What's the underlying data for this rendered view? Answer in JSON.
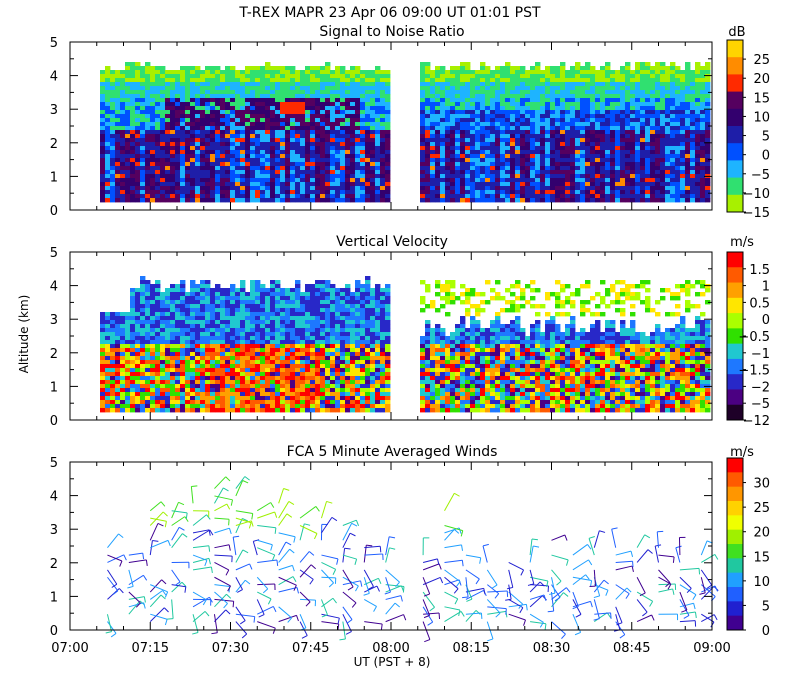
{
  "figure": {
    "title": "T-REX  MAPR 23 Apr 06  09:00 UT  01:01  PST",
    "xlabel": "UT  (PST + 8)",
    "ylabel": "Altitude (km)"
  },
  "chart_data": [
    {
      "type": "heatmap",
      "title": "Signal to Noise Ratio",
      "units": "dB",
      "xlim": [
        "07:00",
        "09:00"
      ],
      "ylim": [
        0,
        5
      ],
      "yticks": [
        "0",
        "1",
        "2",
        "3",
        "4",
        "5"
      ],
      "colorbar_ticks": [
        "25",
        "20",
        "15",
        "10",
        "5",
        "0",
        "−5",
        "−10",
        "−15"
      ],
      "colorbar_values": [
        25,
        20,
        15,
        10,
        5,
        0,
        -5,
        -10,
        -15
      ],
      "colors": [
        "#ffd400",
        "#ff8c00",
        "#ff2a00",
        "#55005f",
        "#33006e",
        "#1e1ea8",
        "#0050ff",
        "#1eb4ff",
        "#30e070",
        "#a8f000"
      ],
      "data_gap": [
        "08:00",
        "08:06"
      ]
    },
    {
      "type": "heatmap",
      "title": "Vertical Velocity",
      "units": "m/s",
      "xlim": [
        "07:00",
        "09:00"
      ],
      "ylim": [
        0,
        5
      ],
      "yticks": [
        "0",
        "1",
        "2",
        "3",
        "4",
        "5"
      ],
      "colorbar_ticks": [
        "1.5",
        "1",
        "0.5",
        "0",
        "−0.5",
        "−1",
        "−1.5",
        "−2",
        "−5",
        "−12"
      ],
      "colorbar_values": [
        1.5,
        1,
        0.5,
        0,
        -0.5,
        -1,
        -1.5,
        -2,
        -5,
        -12
      ],
      "colors": [
        "#ff0000",
        "#ff5a00",
        "#ffa000",
        "#ffe600",
        "#aaff00",
        "#30e000",
        "#20c8d0",
        "#1e78ff",
        "#2828c8",
        "#4b0082",
        "#1e0028"
      ],
      "data_gap": [
        "08:00",
        "08:06"
      ]
    },
    {
      "type": "scatter",
      "title": "FCA 5 Minute Averaged Winds",
      "units": "m/s",
      "xlim": [
        "07:00",
        "09:00"
      ],
      "xticks": [
        "07:00",
        "07:15",
        "07:30",
        "07:45",
        "08:00",
        "08:15",
        "08:30",
        "08:45",
        "09:00"
      ],
      "ylim": [
        0,
        5
      ],
      "yticks": [
        "0",
        "1",
        "2",
        "3",
        "4",
        "5"
      ],
      "colorbar_ticks": [
        "30",
        "25",
        "20",
        "15",
        "10",
        "5",
        "0"
      ],
      "colorbar_values": [
        30,
        25,
        20,
        15,
        10,
        5,
        0
      ],
      "colors": [
        "#ff0000",
        "#ff5a00",
        "#ff9600",
        "#ffd200",
        "#f0ff00",
        "#a0f000",
        "#40e020",
        "#20c8a0",
        "#20a0ff",
        "#2060ff",
        "#2020d0",
        "#400090"
      ],
      "wind_profile_times_min": [
        7,
        11,
        15,
        19,
        23,
        27,
        31,
        35,
        39,
        43,
        47,
        51,
        55,
        59,
        66,
        70,
        74,
        78,
        82,
        86,
        90,
        94,
        98,
        102,
        106,
        110,
        114,
        118
      ],
      "wind_profile_top_km": [
        3.1,
        3.2,
        3.6,
        3.8,
        4.1,
        4.3,
        4.3,
        3.7,
        3.8,
        3.7,
        3.5,
        3.3,
        2.6,
        2.3,
        2.3,
        3.6,
        2.4,
        2.2,
        2.3,
        2.6,
        2.8,
        2.3,
        2.5,
        2.6,
        2.5,
        2.6,
        2.5,
        2.4
      ]
    }
  ]
}
